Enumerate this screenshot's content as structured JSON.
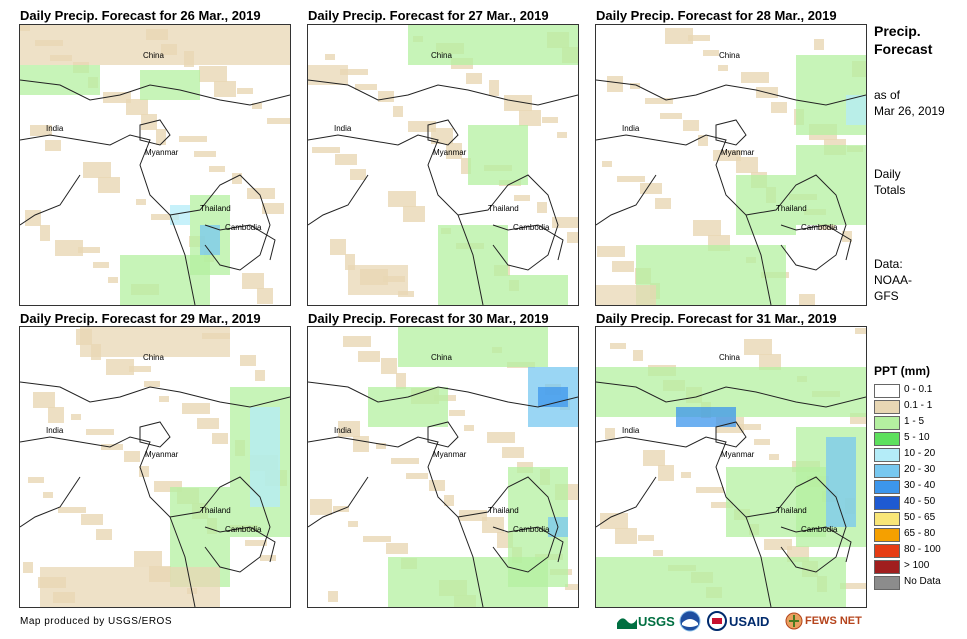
{
  "panels": [
    {
      "title": "Daily Precip. Forecast for 26 Mar., 2019",
      "labels": {
        "china": "China",
        "india": "India",
        "myanmar": "Myanmar",
        "thailand": "Thailand",
        "cambodia": "Cambodia"
      }
    },
    {
      "title": "Daily Precip. Forecast for 27 Mar., 2019",
      "labels": {
        "china": "China",
        "india": "India",
        "myanmar": "Myanmar",
        "thailand": "Thailand",
        "cambodia": "Cambodia"
      }
    },
    {
      "title": "Daily Precip. Forecast for 28 Mar., 2019",
      "labels": {
        "china": "China",
        "india": "India",
        "myanmar": "Myanmar",
        "thailand": "Thailand",
        "cambodia": "Cambodia"
      }
    },
    {
      "title": "Daily Precip. Forecast for 29 Mar., 2019",
      "labels": {
        "china": "China",
        "india": "India",
        "myanmar": "Myanmar",
        "thailand": "Thailand",
        "cambodia": "Cambodia"
      }
    },
    {
      "title": "Daily Precip. Forecast for 30 Mar., 2019",
      "labels": {
        "china": "China",
        "india": "India",
        "myanmar": "Myanmar",
        "thailand": "Thailand",
        "cambodia": "Cambodia"
      }
    },
    {
      "title": "Daily Precip. Forecast for 31 Mar., 2019",
      "labels": {
        "china": "China",
        "india": "India",
        "myanmar": "Myanmar",
        "thailand": "Thailand",
        "cambodia": "Cambodia"
      }
    }
  ],
  "sidebar": {
    "title_line1": "Precip.",
    "title_line2": "Forecast",
    "asof_line1": "as of",
    "asof_line2": "Mar 26, 2019",
    "totals_line1": "Daily",
    "totals_line2": "Totals",
    "data_line1": "Data:",
    "data_line2": "NOAA-",
    "data_line3": "GFS"
  },
  "legend": {
    "title": "PPT (mm)",
    "items": [
      {
        "label": "0 - 0.1",
        "color": "#ffffff"
      },
      {
        "label": "0.1 - 1",
        "color": "#e8d7b4"
      },
      {
        "label": "1 - 5",
        "color": "#b4f0a0"
      },
      {
        "label": "5 - 10",
        "color": "#5ee05e"
      },
      {
        "label": "10 - 20",
        "color": "#b4ecf8"
      },
      {
        "label": "20 - 30",
        "color": "#78c8f0"
      },
      {
        "label": "30 - 40",
        "color": "#3c96ec"
      },
      {
        "label": "40 - 50",
        "color": "#1e5ad2"
      },
      {
        "label": "50 - 65",
        "color": "#f8e678"
      },
      {
        "label": "65 - 80",
        "color": "#f5a000"
      },
      {
        "label": "80 - 100",
        "color": "#e63c14"
      },
      {
        "label": "> 100",
        "color": "#a01e1e"
      },
      {
        "label": "No Data",
        "color": "#8c8c8c"
      }
    ]
  },
  "footer": {
    "credit": "Map produced by USGS/EROS"
  },
  "logos": {
    "usgs": "USGS",
    "usaid": "USAID",
    "fewsnet": "FEWS NET"
  }
}
